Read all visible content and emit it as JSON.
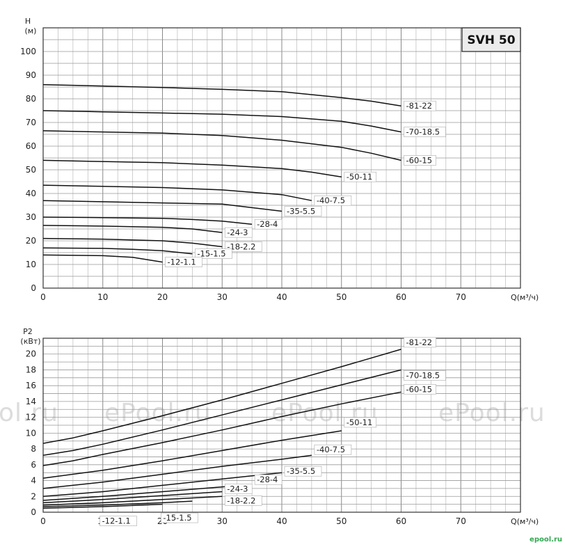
{
  "chart_data": [
    {
      "type": "line",
      "title": "",
      "model_label": "SVH 50",
      "ylabel_line1": "H",
      "ylabel_line2": "(м)",
      "xlabel": "Q(м³/ч)",
      "xlim": [
        0,
        80
      ],
      "ylim": [
        0,
        110
      ],
      "xticks": [
        0,
        10,
        20,
        30,
        40,
        50,
        60,
        70
      ],
      "yticks": [
        0,
        10,
        20,
        30,
        40,
        50,
        60,
        70,
        80,
        90,
        100
      ],
      "grid": true,
      "series": [
        {
          "name": "-81-22",
          "x": [
            0,
            10,
            20,
            30,
            40,
            50,
            55,
            60
          ],
          "y": [
            86,
            85.4,
            84.8,
            84,
            83,
            80.5,
            79,
            77
          ]
        },
        {
          "name": "-70-18.5",
          "x": [
            0,
            10,
            20,
            30,
            40,
            50,
            55,
            60
          ],
          "y": [
            75,
            74.5,
            74,
            73.5,
            72.5,
            70.5,
            68.5,
            66
          ]
        },
        {
          "name": "-60-15",
          "x": [
            0,
            10,
            20,
            30,
            40,
            50,
            55,
            60
          ],
          "y": [
            66.5,
            66,
            65.5,
            64.5,
            62.5,
            59.5,
            57,
            54
          ]
        },
        {
          "name": "-50-11",
          "x": [
            0,
            10,
            20,
            30,
            40,
            45,
            50
          ],
          "y": [
            54,
            53.5,
            53,
            52,
            50.5,
            49,
            47
          ]
        },
        {
          "name": "-40-7.5",
          "x": [
            0,
            10,
            20,
            30,
            40,
            45
          ],
          "y": [
            43.5,
            43,
            42.5,
            41.5,
            39.5,
            37
          ]
        },
        {
          "name": "-35-5.5",
          "x": [
            0,
            10,
            20,
            30,
            35,
            40
          ],
          "y": [
            37,
            36.5,
            36,
            35.5,
            34,
            32.5
          ]
        },
        {
          "name": "-28-4",
          "x": [
            0,
            10,
            20,
            25,
            30,
            35
          ],
          "y": [
            30,
            29.8,
            29.5,
            29,
            28.3,
            27
          ]
        },
        {
          "name": "-24-3",
          "x": [
            0,
            10,
            20,
            25,
            30
          ],
          "y": [
            26.5,
            26.2,
            25.7,
            25,
            23.5
          ]
        },
        {
          "name": "-18-2.2",
          "x": [
            0,
            10,
            20,
            25,
            30
          ],
          "y": [
            21,
            20.7,
            20,
            19,
            17.5
          ]
        },
        {
          "name": "-15-1.5",
          "x": [
            0,
            10,
            15,
            20,
            25
          ],
          "y": [
            17,
            16.8,
            16.4,
            15.8,
            14.5
          ]
        },
        {
          "name": "-12-1.1",
          "x": [
            0,
            10,
            15,
            20
          ],
          "y": [
            14,
            13.7,
            13,
            11
          ]
        }
      ]
    },
    {
      "type": "line",
      "title": "",
      "ylabel_line1": "P2",
      "ylabel_line2": "(кВт)",
      "xlabel": "Q(м³/ч)",
      "xlim": [
        0,
        80
      ],
      "ylim": [
        0,
        22
      ],
      "xticks": [
        0,
        10,
        20,
        30,
        40,
        50,
        60,
        70
      ],
      "yticks": [
        0,
        2,
        4,
        6,
        8,
        10,
        12,
        14,
        16,
        18,
        20
      ],
      "grid": true,
      "series": [
        {
          "name": "-81-22",
          "x": [
            0,
            5,
            10,
            20,
            30,
            40,
            50,
            60
          ],
          "y": [
            8.7,
            9.4,
            10.3,
            12.2,
            14.2,
            16.3,
            18.4,
            20.6
          ]
        },
        {
          "name": "-70-18.5",
          "x": [
            0,
            5,
            10,
            20,
            30,
            40,
            50,
            60
          ],
          "y": [
            7.2,
            7.8,
            8.6,
            10.4,
            12.3,
            14.2,
            16.1,
            18
          ]
        },
        {
          "name": "-60-15",
          "x": [
            0,
            5,
            10,
            20,
            30,
            40,
            50,
            60
          ],
          "y": [
            5.9,
            6.5,
            7.3,
            8.8,
            10.4,
            12.1,
            13.7,
            15.2
          ]
        },
        {
          "name": "-50-11",
          "x": [
            0,
            10,
            20,
            30,
            40,
            50
          ],
          "y": [
            4.3,
            5.3,
            6.5,
            7.8,
            9.1,
            10.3
          ]
        },
        {
          "name": "-40-7.5",
          "x": [
            0,
            10,
            20,
            30,
            40,
            45
          ],
          "y": [
            3,
            3.8,
            4.8,
            5.8,
            6.7,
            7.2
          ]
        },
        {
          "name": "-35-5.5",
          "x": [
            0,
            10,
            20,
            30,
            40
          ],
          "y": [
            2,
            2.6,
            3.4,
            4.2,
            5
          ]
        },
        {
          "name": "-28-4",
          "x": [
            0,
            10,
            20,
            30,
            35
          ],
          "y": [
            1.5,
            2,
            2.6,
            3.2,
            3.5
          ]
        },
        {
          "name": "-24-3",
          "x": [
            0,
            10,
            20,
            30
          ],
          "y": [
            1.2,
            1.6,
            2.1,
            2.6
          ]
        },
        {
          "name": "-18-2.2",
          "x": [
            0,
            10,
            20,
            30
          ],
          "y": [
            0.9,
            1.2,
            1.6,
            2
          ]
        },
        {
          "name": "-15-1.5",
          "x": [
            0,
            10,
            20,
            25
          ],
          "y": [
            0.7,
            0.9,
            1.2,
            1.4
          ]
        },
        {
          "name": "-12-1.1",
          "x": [
            0,
            10,
            20
          ],
          "y": [
            0.5,
            0.7,
            1
          ]
        }
      ]
    }
  ],
  "watermarks": [
    "ol.ru",
    "ePool.ru",
    "ePool.ru",
    "ePool.ru",
    "ePool.ru"
  ],
  "brand": "epool.ru"
}
